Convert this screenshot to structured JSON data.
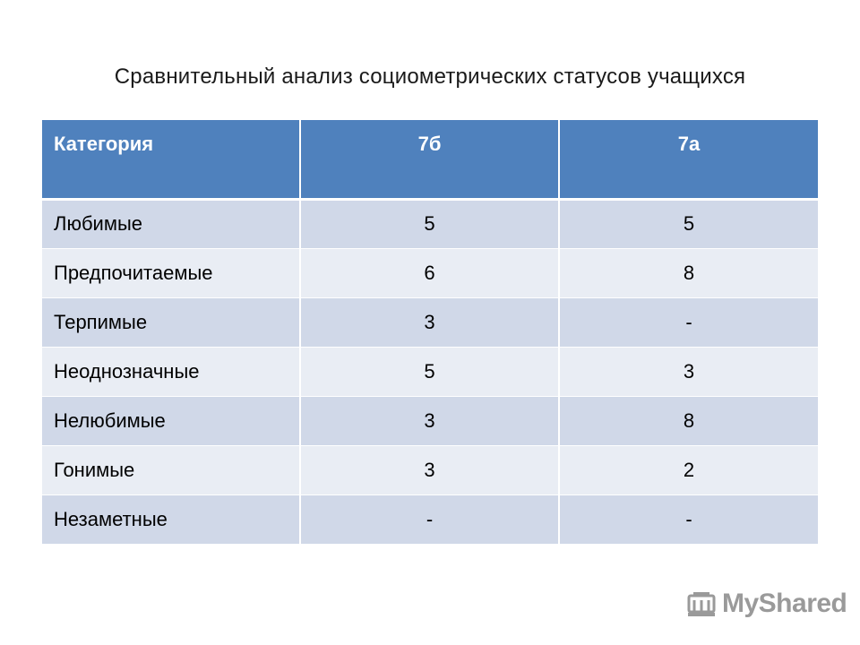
{
  "title": "Сравнительный анализ социометрических статусов учащихся",
  "table": {
    "headers": [
      "Категория",
      "7б",
      "7а"
    ],
    "rows": [
      [
        "Любимые",
        "5",
        "5"
      ],
      [
        "Предпочитаемые",
        "6",
        "8"
      ],
      [
        "Терпимые",
        "3",
        "-"
      ],
      [
        "Неоднозначные",
        "5",
        "3"
      ],
      [
        "Нелюбимые",
        "3",
        "8"
      ],
      [
        "Гонимые",
        "3",
        "2"
      ],
      [
        "Незаметные",
        "-",
        "-"
      ]
    ]
  },
  "watermark": {
    "text": "MyShared",
    "icon": "myshared-logo-icon",
    "color": "#9a9a9a"
  },
  "colors": {
    "header_bg": "#4f81bd",
    "row_odd": "#d0d8e8",
    "row_even": "#e9edf4"
  }
}
